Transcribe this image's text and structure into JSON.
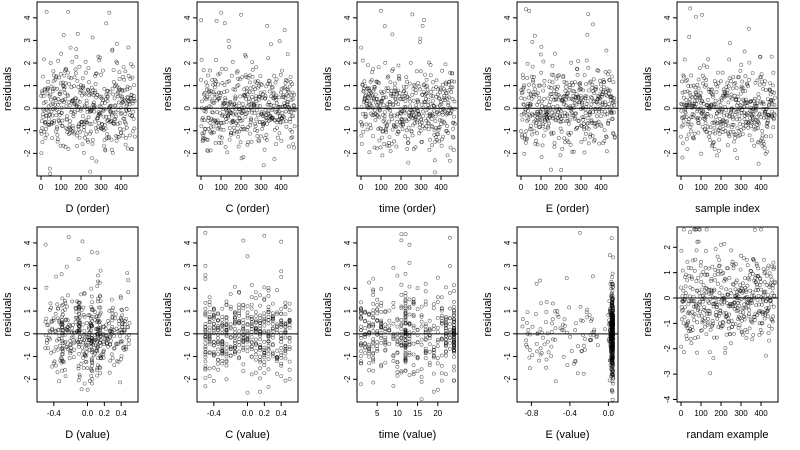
{
  "chart_data": [
    {
      "type": "scatter",
      "xlabel": "D (order)",
      "ylabel": "residuals",
      "xlim": [
        -20,
        485
      ],
      "ylim": [
        -3,
        4.7
      ],
      "xticks": [
        0,
        100,
        200,
        300,
        400
      ],
      "yticks": [
        -2,
        -1,
        0,
        1,
        2,
        3,
        4
      ],
      "ref_y": 0,
      "xdist": "index",
      "n": 470,
      "seed": 11
    },
    {
      "type": "scatter",
      "xlabel": "C (order)",
      "ylabel": "residuals",
      "xlim": [
        -20,
        485
      ],
      "ylim": [
        -3,
        4.7
      ],
      "xticks": [
        0,
        100,
        200,
        300,
        400
      ],
      "yticks": [
        -2,
        -1,
        0,
        1,
        2,
        3,
        4
      ],
      "ref_y": 0,
      "xdist": "index",
      "n": 470,
      "seed": 12
    },
    {
      "type": "scatter",
      "xlabel": "time (order)",
      "ylabel": "residuals",
      "xlim": [
        -20,
        485
      ],
      "ylim": [
        -3,
        4.7
      ],
      "xticks": [
        0,
        100,
        200,
        300,
        400
      ],
      "yticks": [
        -2,
        -1,
        0,
        1,
        2,
        3,
        4
      ],
      "ref_y": 0,
      "xdist": "index",
      "n": 470,
      "seed": 13
    },
    {
      "type": "scatter",
      "xlabel": "E (order)",
      "ylabel": "residuals",
      "xlim": [
        -20,
        485
      ],
      "ylim": [
        -3,
        4.7
      ],
      "xticks": [
        0,
        100,
        200,
        300,
        400
      ],
      "yticks": [
        -2,
        -1,
        0,
        1,
        2,
        3,
        4
      ],
      "ref_y": 0,
      "xdist": "index",
      "n": 470,
      "seed": 14
    },
    {
      "type": "scatter",
      "xlabel": "sample index",
      "ylabel": "residuals",
      "xlim": [
        -20,
        485
      ],
      "ylim": [
        -3,
        4.7
      ],
      "xticks": [
        0,
        100,
        200,
        300,
        400
      ],
      "yticks": [
        -2,
        -1,
        0,
        1,
        2,
        3,
        4
      ],
      "ref_y": 0,
      "xdist": "index",
      "n": 470,
      "seed": 15
    },
    {
      "type": "scatter",
      "xlabel": "D (value)",
      "ylabel": "residuals",
      "xlim": [
        -0.6,
        0.6
      ],
      "ylim": [
        -3,
        4.7
      ],
      "xticks": [
        -0.4,
        0,
        0.2,
        0.4
      ],
      "xticklabels": [
        "-0.4",
        "0.0",
        "0.2",
        "0.4"
      ],
      "yticks": [
        -2,
        -1,
        0,
        1,
        2,
        3,
        4
      ],
      "ref_y": 0,
      "xdist": "uniform",
      "xrange": [
        -0.5,
        0.5
      ],
      "xclusters": [
        -0.3,
        -0.1,
        0.05,
        0.12,
        0.15
      ],
      "n": 470,
      "seed": 21
    },
    {
      "type": "scatter",
      "xlabel": "C (value)",
      "ylabel": "residuals",
      "xlim": [
        -0.6,
        0.6
      ],
      "ylim": [
        -3,
        4.7
      ],
      "xticks": [
        -0.4,
        0,
        0.2,
        0.4
      ],
      "xticklabels": [
        "-0.4",
        "0.0",
        "0.2",
        "0.4"
      ],
      "yticks": [
        -2,
        -1,
        0,
        1,
        2,
        3,
        4
      ],
      "ref_y": 0,
      "xdist": "discrete",
      "xlevels": [
        -0.5,
        -0.45,
        -0.4,
        -0.35,
        -0.3,
        -0.25,
        -0.2,
        -0.15,
        -0.1,
        -0.05,
        0,
        0.05,
        0.1,
        0.15,
        0.2,
        0.25,
        0.3,
        0.35,
        0.4,
        0.45,
        0.5
      ],
      "n": 470,
      "seed": 22
    },
    {
      "type": "scatter",
      "xlabel": "time (value)",
      "ylabel": "residuals",
      "xlim": [
        0,
        25
      ],
      "ylim": [
        -3,
        4.7
      ],
      "xticks": [
        5,
        10,
        15,
        20
      ],
      "yticks": [
        -2,
        -1,
        0,
        1,
        2,
        3,
        4
      ],
      "ref_y": 0,
      "xdist": "discrete",
      "xlevels": [
        1,
        2,
        3,
        4,
        5,
        6,
        7,
        8,
        9,
        10,
        11,
        12,
        13,
        14,
        15,
        16,
        17,
        18,
        19,
        20,
        21,
        22,
        23,
        24
      ],
      "xclusters": [
        12,
        24
      ],
      "n": 470,
      "seed": 23
    },
    {
      "type": "scatter",
      "xlabel": "E (value)",
      "ylabel": "residuals",
      "xlim": [
        -0.95,
        0.1
      ],
      "ylim": [
        -3,
        4.7
      ],
      "xticks": [
        -0.8,
        -0.4,
        0
      ],
      "xticklabels": [
        "-0.8",
        "-0.4",
        "0.0"
      ],
      "yticks": [
        -2,
        -1,
        0,
        1,
        2,
        3,
        4
      ],
      "ref_y": 0,
      "xdist": "skew",
      "xrange": [
        -0.9,
        0.05
      ],
      "n": 470,
      "seed": 24
    },
    {
      "type": "scatter",
      "xlabel": "randam example",
      "ylabel": "residuals",
      "xlim": [
        -20,
        485
      ],
      "ylim": [
        -4.1,
        2.8
      ],
      "xticks": [
        0,
        100,
        200,
        300,
        400
      ],
      "yticks": [
        -4,
        -3,
        -2,
        -1,
        0,
        1,
        2
      ],
      "ref_y": 0,
      "xdist": "index",
      "n": 470,
      "seed": 31
    }
  ]
}
